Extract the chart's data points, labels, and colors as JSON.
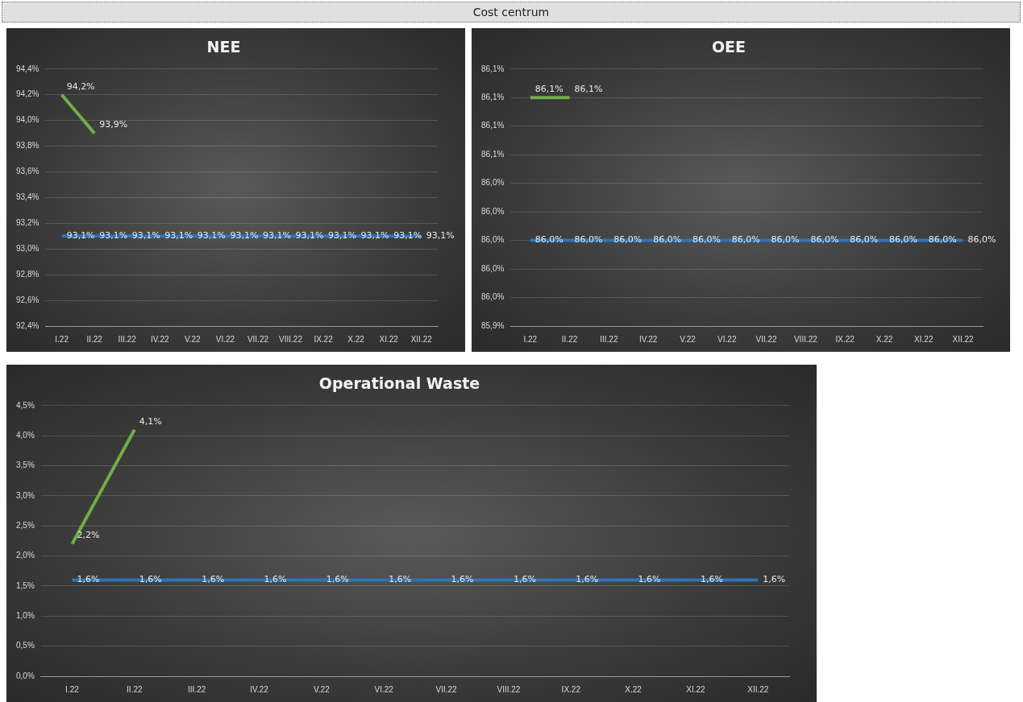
{
  "chart_data": [
    {
      "type": "line",
      "title": "NEE",
      "annotations": [
        "Cost centrum"
      ],
      "categories": [
        "I.22",
        "II.22",
        "III.22",
        "IV.22",
        "V.22",
        "VI.22",
        "VII.22",
        "VIII.22",
        "IX.22",
        "X.22",
        "XI.22",
        "XII.22"
      ],
      "series": [
        {
          "color": "#70ad47",
          "values": [
            94.2,
            93.9,
            null,
            null,
            null,
            null,
            null,
            null,
            null,
            null,
            null,
            null
          ],
          "value_labels": [
            "94,2%",
            "93,9%",
            null,
            null,
            null,
            null,
            null,
            null,
            null,
            null,
            null,
            null
          ]
        },
        {
          "color": "#2e75b6",
          "values": [
            93.1,
            93.1,
            93.1,
            93.1,
            93.1,
            93.1,
            93.1,
            93.1,
            93.1,
            93.1,
            93.1,
            93.1
          ],
          "value_labels": [
            "93,1%",
            "93,1%",
            "93,1%",
            "93,1%",
            "93,1%",
            "93,1%",
            "93,1%",
            "93,1%",
            "93,1%",
            "93,1%",
            "93,1%",
            "93,1%"
          ]
        }
      ],
      "ylim": [
        92.4,
        94.4
      ],
      "yticks": [
        {
          "value": 92.4,
          "label": "92,4%"
        },
        {
          "value": 92.6,
          "label": "92,6%"
        },
        {
          "value": 92.8,
          "label": "92,8%"
        },
        {
          "value": 93.0,
          "label": "93,0%"
        },
        {
          "value": 93.2,
          "label": "93,2%"
        },
        {
          "value": 93.4,
          "label": "93,4%"
        },
        {
          "value": 93.6,
          "label": "93,6%"
        },
        {
          "value": 93.8,
          "label": "93,8%"
        },
        {
          "value": 94.0,
          "label": "94,0%"
        },
        {
          "value": 94.2,
          "label": "94,2%"
        },
        {
          "value": 94.4,
          "label": "94,4%"
        }
      ],
      "grid": "y",
      "legend": false,
      "marker": "none",
      "line_style": "solid"
    },
    {
      "type": "line",
      "title": "OEE",
      "categories": [
        "I.22",
        "II.22",
        "III.22",
        "IV.22",
        "V.22",
        "VI.22",
        "VII.22",
        "VIII.22",
        "IX.22",
        "X.22",
        "XI.22",
        "XII.22"
      ],
      "series": [
        {
          "color": "#70ad47",
          "values": [
            86.1,
            86.1,
            null,
            null,
            null,
            null,
            null,
            null,
            null,
            null,
            null,
            null
          ],
          "value_labels": [
            "86,1%",
            "86,1%",
            null,
            null,
            null,
            null,
            null,
            null,
            null,
            null,
            null,
            null
          ]
        },
        {
          "color": "#2e75b6",
          "values": [
            86.0,
            86.0,
            86.0,
            86.0,
            86.0,
            86.0,
            86.0,
            86.0,
            86.0,
            86.0,
            86.0,
            86.0
          ],
          "value_labels": [
            "86,0%",
            "86,0%",
            "86,0%",
            "86,0%",
            "86,0%",
            "86,0%",
            "86,0%",
            "86,0%",
            "86,0%",
            "86,0%",
            "86,0%",
            "86,0%"
          ]
        }
      ],
      "ylim": [
        85.94,
        86.12
      ],
      "yticks": [
        {
          "value": 85.94,
          "label": "85,9%"
        },
        {
          "value": 85.96,
          "label": "86,0%"
        },
        {
          "value": 85.98,
          "label": "86,0%"
        },
        {
          "value": 86.0,
          "label": "86,0%"
        },
        {
          "value": 86.02,
          "label": "86,0%"
        },
        {
          "value": 86.04,
          "label": "86,0%"
        },
        {
          "value": 86.06,
          "label": "86,1%"
        },
        {
          "value": 86.08,
          "label": "86,1%"
        },
        {
          "value": 86.1,
          "label": "86,1%"
        },
        {
          "value": 86.12,
          "label": "86,1%"
        }
      ],
      "grid": "y",
      "legend": false,
      "marker": "none",
      "line_style": "solid"
    },
    {
      "type": "line",
      "title": "Operational Waste",
      "categories": [
        "I.22",
        "II.22",
        "III.22",
        "IV.22",
        "V.22",
        "VI.22",
        "VII.22",
        "VIII.22",
        "IX.22",
        "X.22",
        "XI.22",
        "XII.22"
      ],
      "series": [
        {
          "color": "#70ad47",
          "values": [
            2.2,
            4.1,
            null,
            null,
            null,
            null,
            null,
            null,
            null,
            null,
            null,
            null
          ],
          "value_labels": [
            "2,2%",
            "4,1%",
            null,
            null,
            null,
            null,
            null,
            null,
            null,
            null,
            null,
            null
          ]
        },
        {
          "color": "#2e75b6",
          "values": [
            1.6,
            1.6,
            1.6,
            1.6,
            1.6,
            1.6,
            1.6,
            1.6,
            1.6,
            1.6,
            1.6,
            1.6
          ],
          "value_labels": [
            "1,6%",
            "1,6%",
            "1,6%",
            "1,6%",
            "1,6%",
            "1,6%",
            "1,6%",
            "1,6%",
            "1,6%",
            "1,6%",
            "1,6%",
            "1,6%"
          ]
        }
      ],
      "ylim": [
        0,
        4.5
      ],
      "yticks": [
        {
          "value": 0,
          "label": "0,0%"
        },
        {
          "value": 0.5,
          "label": "0,5%"
        },
        {
          "value": 1.0,
          "label": "1,0%"
        },
        {
          "value": 1.5,
          "label": "1,5%"
        },
        {
          "value": 2.0,
          "label": "2,0%"
        },
        {
          "value": 2.5,
          "label": "2,5%"
        },
        {
          "value": 3.0,
          "label": "3,0%"
        },
        {
          "value": 3.5,
          "label": "3,5%"
        },
        {
          "value": 4.0,
          "label": "4,0%"
        },
        {
          "value": 4.5,
          "label": "4,5%"
        }
      ],
      "grid": "y",
      "legend": false,
      "marker": "none",
      "line_style": "solid"
    }
  ]
}
